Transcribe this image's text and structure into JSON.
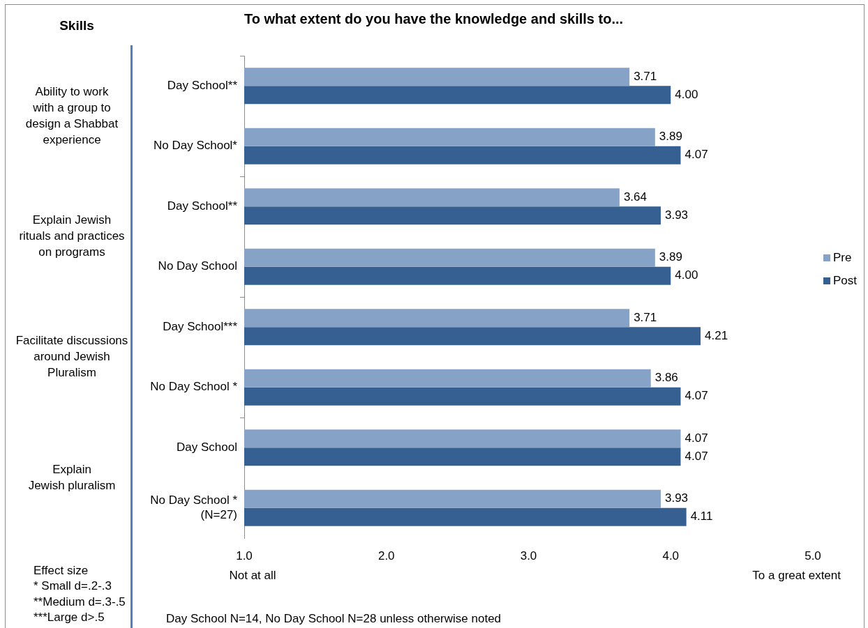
{
  "chart_data": {
    "type": "bar",
    "orientation": "horizontal",
    "title": "To what extent do you have the knowledge and skills to...",
    "ylabel": "Skills",
    "categories": [
      "Day School**",
      "No Day School*",
      "Day School**",
      "No Day School",
      "Day School***",
      "No Day School *",
      "Day School",
      "No Day School *\n(N=27)"
    ],
    "series": [
      {
        "name": "Pre",
        "color": "#87a2c7",
        "values": [
          3.71,
          3.89,
          3.64,
          3.89,
          3.71,
          3.86,
          4.07,
          3.93
        ],
        "value_labels": [
          "3.71",
          "3.89",
          "3.64",
          "3.89",
          "3.71",
          "3.86",
          "4.07",
          "3.93"
        ]
      },
      {
        "name": "Post",
        "color": "#376092",
        "values": [
          4.0,
          4.07,
          3.93,
          4.0,
          4.21,
          4.07,
          4.07,
          4.11
        ],
        "value_labels": [
          "4.00",
          "4.07",
          "3.93",
          "4.00",
          "4.21",
          "4.07",
          "4.07",
          "4.11"
        ]
      }
    ],
    "xlim": [
      1,
      5
    ],
    "xticks": [
      {
        "value": 1,
        "label": "1.0"
      },
      {
        "value": 2,
        "label": "2.0"
      },
      {
        "value": 3,
        "label": "3.0"
      },
      {
        "value": 4,
        "label": "4.0"
      },
      {
        "value": 5,
        "label": "5.0"
      }
    ],
    "legend": "right",
    "annotations": [
      "Ability to work\nwith a group to\ndesign a Shabbat\nexperience",
      "Explain Jewish\nrituals and practices\non programs",
      "Facilitate discussions\naround Jewish\nPluralism",
      "Explain\nJewish pluralism",
      "Not at all",
      "To a great extent",
      "Effect size\n* Small d=.2-.3\n**Medium d=.3-.5\n***Large d>.5",
      "Day School N=14, No Day School N=28 unless otherwise noted"
    ]
  }
}
